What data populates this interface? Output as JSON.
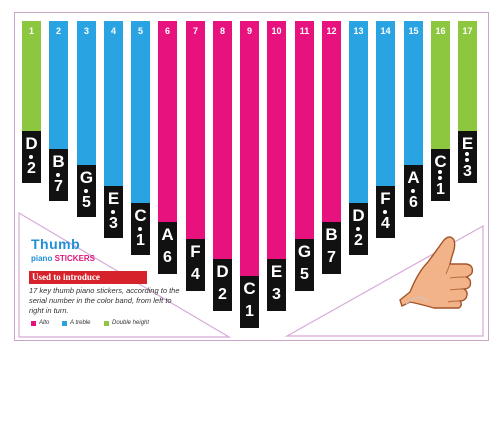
{
  "colors": {
    "alto": "#e8127f",
    "treble": "#2aa3e3",
    "double_height": "#8dc63f",
    "note_bg": "#111111"
  },
  "keys": [
    {
      "num": "1",
      "letter": "D",
      "digit": "2",
      "dot": "above",
      "group": "double_height",
      "height": 162
    },
    {
      "num": "2",
      "letter": "B",
      "digit": "7",
      "dot": "above",
      "group": "treble",
      "height": 180
    },
    {
      "num": "3",
      "letter": "G",
      "digit": "5",
      "dot": "above",
      "group": "treble",
      "height": 196
    },
    {
      "num": "4",
      "letter": "E",
      "digit": "3",
      "dot": "above",
      "group": "treble",
      "height": 217
    },
    {
      "num": "5",
      "letter": "C",
      "digit": "1",
      "dot": "above",
      "group": "treble",
      "height": 234
    },
    {
      "num": "6",
      "letter": "A",
      "digit": "6",
      "dot": "none",
      "group": "alto",
      "height": 253
    },
    {
      "num": "7",
      "letter": "F",
      "digit": "4",
      "dot": "none",
      "group": "alto",
      "height": 270
    },
    {
      "num": "8",
      "letter": "D",
      "digit": "2",
      "dot": "none",
      "group": "alto",
      "height": 290
    },
    {
      "num": "9",
      "letter": "C",
      "digit": "1",
      "dot": "none",
      "group": "alto",
      "height": 307
    },
    {
      "num": "10",
      "letter": "E",
      "digit": "3",
      "dot": "none",
      "group": "alto",
      "height": 290
    },
    {
      "num": "11",
      "letter": "G",
      "digit": "5",
      "dot": "none",
      "group": "alto",
      "height": 270
    },
    {
      "num": "12",
      "letter": "B",
      "digit": "7",
      "dot": "none",
      "group": "alto",
      "height": 253
    },
    {
      "num": "13",
      "letter": "D",
      "digit": "2",
      "dot": "above",
      "group": "treble",
      "height": 234
    },
    {
      "num": "14",
      "letter": "F",
      "digit": "4",
      "dot": "above",
      "group": "treble",
      "height": 217
    },
    {
      "num": "15",
      "letter": "A",
      "digit": "6",
      "dot": "above",
      "group": "treble",
      "height": 196
    },
    {
      "num": "16",
      "letter": "C",
      "digit": "1",
      "dot": "two",
      "group": "double_height",
      "height": 180
    },
    {
      "num": "17",
      "letter": "E",
      "digit": "3",
      "dot": "two",
      "group": "double_height",
      "height": 162
    }
  ],
  "info": {
    "title_line1": "Thumb",
    "title_line2_a": "piano ",
    "title_line2_b": "STICKERS",
    "intro_label": "Used to introduce",
    "description": "17 key thumb piano stickers, according to the serial number in the color band, from left to right in turn.",
    "legend": [
      {
        "label": "Alto",
        "color_key": "alto"
      },
      {
        "label": "A treble",
        "color_key": "treble"
      },
      {
        "label": "Double height",
        "color_key": "double_height"
      }
    ]
  },
  "illustration": {
    "icon": "thumbs-up-hand-icon"
  }
}
